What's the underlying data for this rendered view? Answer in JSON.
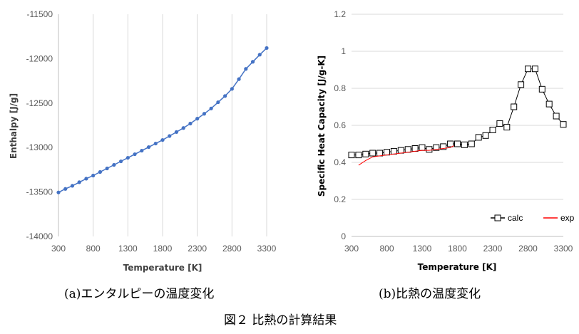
{
  "chart_data": [
    {
      "type": "line",
      "xlabel": "Temperature [K]",
      "ylabel": "Enthalpy [J/g]",
      "xlim": [
        300,
        3300
      ],
      "ylim": [
        -14000,
        -11500
      ],
      "xticks": [
        300,
        800,
        1300,
        1800,
        2300,
        2800,
        3300
      ],
      "yticks": [
        -14000,
        -13500,
        -13000,
        -12500,
        -12000,
        -11500
      ],
      "grid": "vertical",
      "color": "#4472C4",
      "marker": "circle",
      "series": [
        {
          "x": [
            300,
            400,
            500,
            600,
            700,
            800,
            900,
            1000,
            1100,
            1200,
            1300,
            1400,
            1500,
            1600,
            1700,
            1800,
            1900,
            2000,
            2100,
            2200,
            2300,
            2400,
            2500,
            2600,
            2700,
            2800,
            2900,
            3000,
            3100,
            3200,
            3300
          ],
          "y": [
            -13505,
            -13465,
            -13430,
            -13390,
            -13350,
            -13315,
            -13275,
            -13235,
            -13195,
            -13155,
            -13115,
            -13075,
            -13035,
            -12995,
            -12955,
            -12915,
            -12870,
            -12825,
            -12780,
            -12730,
            -12675,
            -12620,
            -12560,
            -12490,
            -12420,
            -12340,
            -12230,
            -12115,
            -12035,
            -11955,
            -11880
          ]
        }
      ]
    },
    {
      "type": "line",
      "xlabel": "Temperature [K]",
      "ylabel": "Specific Heat Capacity [J/g-K]",
      "xlim": [
        300,
        3300
      ],
      "ylim": [
        0,
        1.2
      ],
      "xticks": [
        300,
        800,
        1300,
        1800,
        2300,
        2800,
        3300
      ],
      "yticks": [
        0,
        0.2,
        0.4,
        0.6,
        0.8,
        1,
        1.2
      ],
      "grid": "horizontal",
      "legend": "bottom-right",
      "series": [
        {
          "name": "calc",
          "color": "#000000",
          "marker": "square",
          "x": [
            300,
            400,
            500,
            600,
            700,
            800,
            900,
            1000,
            1100,
            1200,
            1300,
            1400,
            1500,
            1600,
            1700,
            1800,
            1900,
            2000,
            2100,
            2200,
            2300,
            2400,
            2500,
            2600,
            2700,
            2800,
            2900,
            3000,
            3100,
            3200,
            3300
          ],
          "y": [
            0.44,
            0.44,
            0.445,
            0.45,
            0.45,
            0.455,
            0.46,
            0.465,
            0.47,
            0.475,
            0.48,
            0.47,
            0.48,
            0.485,
            0.5,
            0.5,
            0.495,
            0.5,
            0.535,
            0.545,
            0.575,
            0.61,
            0.59,
            0.7,
            0.82,
            0.905,
            0.905,
            0.795,
            0.715,
            0.65,
            0.605
          ]
        },
        {
          "name": "exp",
          "color": "#FF0000",
          "marker": "none",
          "x": [
            400,
            500,
            600,
            700,
            800,
            900,
            1000,
            1100,
            1200,
            1300,
            1400,
            1500,
            1600,
            1700,
            1750
          ],
          "y": [
            0.385,
            0.41,
            0.43,
            0.435,
            0.44,
            0.445,
            0.45,
            0.455,
            0.46,
            0.465,
            0.465,
            0.47,
            0.475,
            0.48,
            0.49
          ]
        }
      ]
    }
  ],
  "captions": {
    "a": "(a)エンタルピーの温度変化",
    "b": "(b)比熱の温度変化",
    "figure": "図２ 比熱の計算結果"
  }
}
